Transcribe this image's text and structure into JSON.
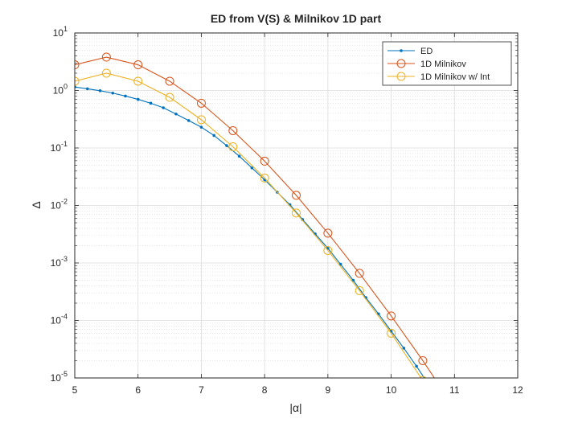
{
  "chart_data": {
    "type": "line",
    "title": "ED from V(S) & Milnikov 1D part",
    "xlabel": "|α|",
    "ylabel": "Δ",
    "xlim": [
      5,
      12
    ],
    "ylim": [
      1e-05,
      10
    ],
    "yscale": "log",
    "grid": true,
    "minor_grid": true,
    "legend_position": "top-right",
    "x_ticks": [
      "5",
      "6",
      "7",
      "8",
      "9",
      "10",
      "11",
      "12"
    ],
    "y_ticks": [
      {
        "base": "10",
        "exp": "1"
      },
      {
        "base": "10",
        "exp": "0"
      },
      {
        "base": "10",
        "exp": "-1"
      },
      {
        "base": "10",
        "exp": "-2"
      },
      {
        "base": "10",
        "exp": "-3"
      },
      {
        "base": "10",
        "exp": "-4"
      },
      {
        "base": "10",
        "exp": "-5"
      }
    ],
    "series": [
      {
        "name": "ED",
        "color": "#0072BD",
        "marker": "dot",
        "x": [
          5.0,
          5.2,
          5.4,
          5.6,
          5.8,
          6.0,
          6.2,
          6.4,
          6.6,
          6.8,
          7.0,
          7.2,
          7.4,
          7.6,
          7.8,
          8.0,
          8.2,
          8.4,
          8.6,
          8.8,
          9.0,
          9.2,
          9.4,
          9.6,
          9.8,
          10.0,
          10.2,
          10.4,
          10.6
        ],
        "y": [
          1.15,
          1.07,
          0.99,
          0.9,
          0.8,
          0.7,
          0.6,
          0.5,
          0.39,
          0.3,
          0.23,
          0.165,
          0.11,
          0.072,
          0.045,
          0.028,
          0.017,
          0.0103,
          0.0057,
          0.0032,
          0.0018,
          0.00095,
          0.0005,
          0.00025,
          0.00013,
          6.5e-05,
          3.3e-05,
          1.6e-05,
          7.5e-06
        ]
      },
      {
        "name": "1D Milnikov",
        "color": "#D95319",
        "marker": "circle",
        "x": [
          5.0,
          5.5,
          6.0,
          6.5,
          7.0,
          7.5,
          8.0,
          8.5,
          9.0,
          9.5,
          10.0,
          10.5,
          11.0
        ],
        "y": [
          2.8,
          3.8,
          2.8,
          1.45,
          0.6,
          0.2,
          0.059,
          0.015,
          0.0033,
          0.00066,
          0.00012,
          2e-05,
          3e-06
        ]
      },
      {
        "name": "1D Milnikov w/ Int",
        "color": "#EDB120",
        "marker": "circle",
        "x": [
          5.0,
          5.5,
          6.0,
          6.5,
          7.0,
          7.5,
          8.0,
          8.5,
          9.0,
          9.5,
          10.0,
          10.5
        ],
        "y": [
          1.45,
          2.0,
          1.45,
          0.76,
          0.31,
          0.105,
          0.03,
          0.0074,
          0.00165,
          0.00033,
          6e-05,
          9e-06
        ]
      }
    ]
  }
}
